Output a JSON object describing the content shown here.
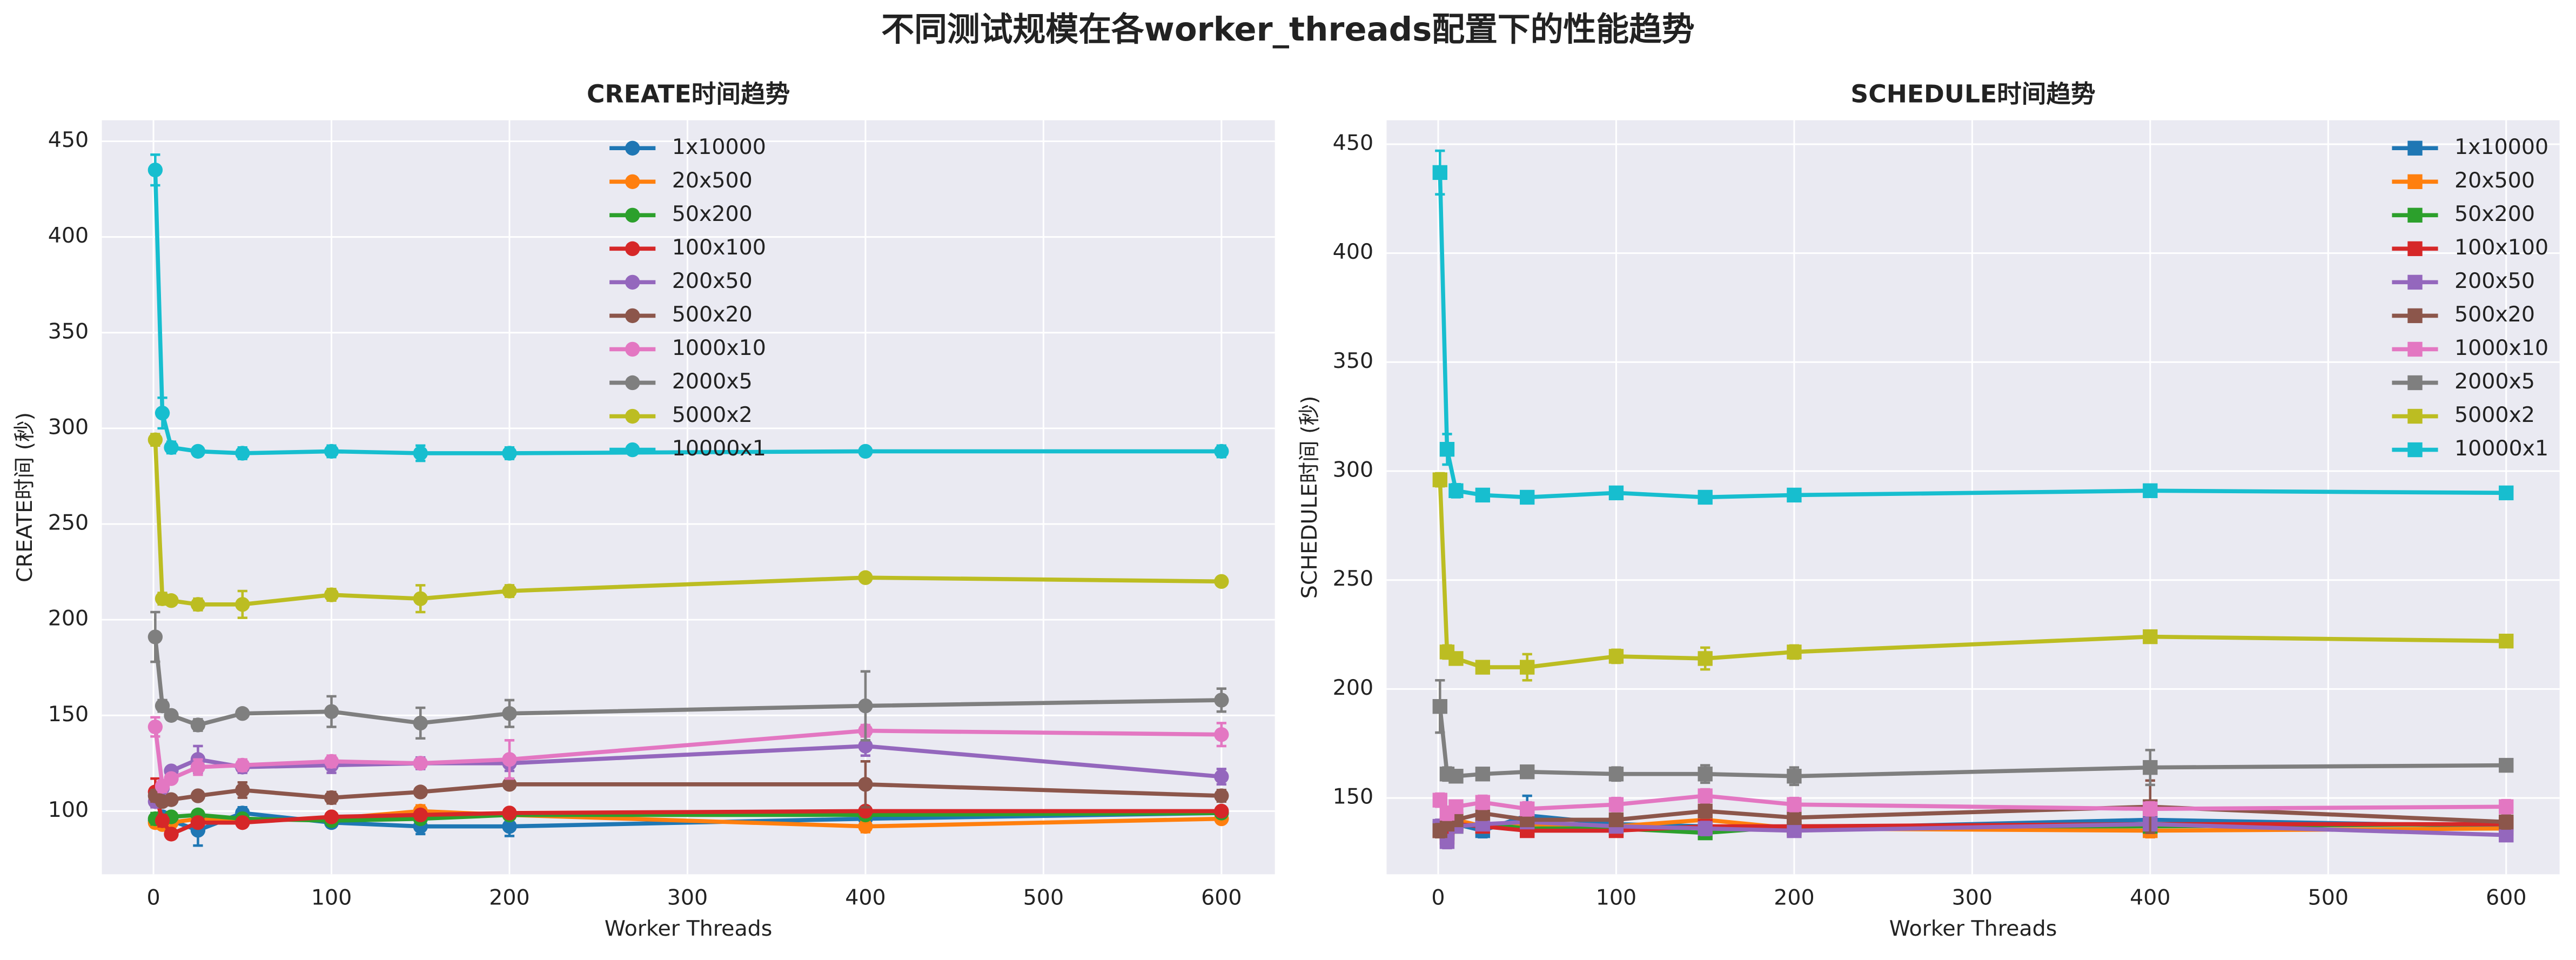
{
  "title": "不同测试规模在各worker_threads配置下的性能趋势",
  "chart_data": [
    {
      "type": "line",
      "title": "CREATE时间趋势",
      "x_label": "Worker Threads",
      "y_label": "CREATE时间 (秒)",
      "marker": "circle",
      "legend": "upper center",
      "grid": true,
      "x": [
        1,
        5,
        10,
        25,
        50,
        100,
        150,
        200,
        400,
        600
      ],
      "xlim": [
        -29,
        630
      ],
      "xticks": [
        0,
        100,
        200,
        300,
        400,
        500,
        600
      ],
      "ylim": [
        67,
        461
      ],
      "yticks": [
        100,
        150,
        200,
        250,
        300,
        350,
        400,
        450
      ],
      "series": [
        {
          "name": "1x10000",
          "color": "#1f77b4",
          "values": [
            95,
            97,
            95,
            90,
            99,
            94,
            92,
            92,
            96,
            99
          ],
          "errors": [
            3,
            2,
            2,
            8,
            3,
            2,
            4,
            5,
            3,
            2
          ]
        },
        {
          "name": "20x500",
          "color": "#ff7f0e",
          "values": [
            94,
            93,
            94,
            96,
            95,
            96,
            100,
            98,
            92,
            96
          ],
          "errors": [
            2,
            2,
            2,
            2,
            2,
            2,
            3,
            2,
            3,
            2
          ]
        },
        {
          "name": "50x200",
          "color": "#2ca02c",
          "values": [
            96,
            95,
            97,
            98,
            96,
            95,
            96,
            98,
            98,
            99
          ],
          "errors": [
            3,
            2,
            2,
            2,
            2,
            2,
            2,
            2,
            2,
            2
          ]
        },
        {
          "name": "100x100",
          "color": "#d62728",
          "values": [
            110,
            95,
            88,
            94,
            94,
            97,
            98,
            99,
            100,
            100
          ],
          "errors": [
            7,
            3,
            2,
            2,
            2,
            2,
            2,
            2,
            2,
            2
          ]
        },
        {
          "name": "200x50",
          "color": "#9467bd",
          "values": [
            105,
            112,
            121,
            127,
            123,
            124,
            125,
            125,
            134,
            118
          ],
          "errors": [
            3,
            2,
            2,
            7,
            3,
            4,
            3,
            4,
            5,
            4
          ]
        },
        {
          "name": "500x20",
          "color": "#8c564b",
          "values": [
            108,
            105,
            106,
            108,
            111,
            107,
            110,
            114,
            114,
            108
          ],
          "errors": [
            3,
            2,
            2,
            2,
            4,
            3,
            2,
            2,
            12,
            3
          ]
        },
        {
          "name": "1000x10",
          "color": "#e377c2",
          "values": [
            144,
            113,
            117,
            123,
            124,
            126,
            125,
            127,
            142,
            140
          ],
          "errors": [
            5,
            3,
            2,
            4,
            3,
            3,
            2,
            10,
            3,
            6
          ]
        },
        {
          "name": "2000x5",
          "color": "#7f7f7f",
          "values": [
            191,
            155,
            150,
            145,
            151,
            152,
            146,
            151,
            155,
            158
          ],
          "errors": [
            13,
            3,
            2,
            3,
            2,
            8,
            8,
            7,
            18,
            6
          ]
        },
        {
          "name": "5000x2",
          "color": "#bcbd22",
          "values": [
            294,
            211,
            210,
            208,
            208,
            213,
            211,
            215,
            222,
            220
          ],
          "errors": [
            3,
            3,
            2,
            3,
            7,
            3,
            7,
            3,
            2,
            2
          ]
        },
        {
          "name": "10000x1",
          "color": "#17becf",
          "values": [
            435,
            308,
            290,
            288,
            287,
            288,
            287,
            287,
            288,
            288
          ],
          "errors": [
            8,
            8,
            3,
            2,
            3,
            3,
            4,
            3,
            2,
            3
          ]
        }
      ]
    },
    {
      "type": "line",
      "title": "SCHEDULE时间趋势",
      "x_label": "Worker Threads",
      "y_label": "SCHEDULE时间 (秒)",
      "marker": "square",
      "legend": "upper right",
      "grid": true,
      "x": [
        1,
        5,
        10,
        25,
        50,
        100,
        150,
        200,
        400,
        600
      ],
      "xlim": [
        -29,
        630
      ],
      "xticks": [
        0,
        100,
        200,
        300,
        400,
        500,
        600
      ],
      "ylim": [
        115,
        461
      ],
      "yticks": [
        150,
        200,
        250,
        300,
        350,
        400,
        450
      ],
      "series": [
        {
          "name": "1x10000",
          "color": "#1f77b4",
          "values": [
            136,
            134,
            138,
            135,
            142,
            138,
            137,
            136,
            140,
            137
          ],
          "errors": [
            3,
            2,
            2,
            3,
            9,
            2,
            3,
            2,
            3,
            2
          ]
        },
        {
          "name": "20x500",
          "color": "#ff7f0e",
          "values": [
            135,
            136,
            140,
            137,
            138,
            137,
            140,
            136,
            135,
            136
          ],
          "errors": [
            2,
            2,
            2,
            2,
            2,
            2,
            3,
            2,
            3,
            2
          ]
        },
        {
          "name": "50x200",
          "color": "#2ca02c",
          "values": [
            136,
            134,
            137,
            138,
            136,
            136,
            134,
            137,
            137,
            138
          ],
          "errors": [
            2,
            2,
            2,
            2,
            2,
            2,
            2,
            2,
            2,
            2
          ]
        },
        {
          "name": "100x100",
          "color": "#d62728",
          "values": [
            135,
            132,
            138,
            137,
            135,
            135,
            137,
            137,
            138,
            138
          ],
          "errors": [
            3,
            3,
            2,
            2,
            2,
            2,
            2,
            2,
            2,
            2
          ]
        },
        {
          "name": "200x50",
          "color": "#9467bd",
          "values": [
            137,
            130,
            137,
            138,
            139,
            137,
            136,
            135,
            138,
            133
          ],
          "errors": [
            3,
            3,
            2,
            2,
            2,
            2,
            3,
            2,
            2,
            2
          ]
        },
        {
          "name": "500x20",
          "color": "#8c564b",
          "values": [
            135,
            138,
            140,
            143,
            140,
            140,
            144,
            141,
            146,
            139
          ],
          "errors": [
            3,
            2,
            2,
            3,
            2,
            2,
            3,
            2,
            12,
            3
          ]
        },
        {
          "name": "1000x10",
          "color": "#e377c2",
          "values": [
            149,
            143,
            146,
            148,
            145,
            147,
            151,
            147,
            145,
            146
          ],
          "errors": [
            3,
            3,
            2,
            3,
            3,
            3,
            3,
            3,
            3,
            3
          ]
        },
        {
          "name": "2000x5",
          "color": "#7f7f7f",
          "values": [
            192,
            161,
            160,
            161,
            162,
            161,
            161,
            160,
            164,
            165
          ],
          "errors": [
            12,
            3,
            2,
            2,
            2,
            3,
            4,
            4,
            8,
            2
          ]
        },
        {
          "name": "5000x2",
          "color": "#bcbd22",
          "values": [
            296,
            217,
            214,
            210,
            210,
            215,
            214,
            217,
            224,
            222
          ],
          "errors": [
            3,
            3,
            2,
            2,
            6,
            3,
            5,
            3,
            2,
            2
          ]
        },
        {
          "name": "10000x1",
          "color": "#17becf",
          "values": [
            437,
            310,
            291,
            289,
            288,
            290,
            288,
            289,
            291,
            290
          ],
          "errors": [
            10,
            7,
            3,
            2,
            2,
            2,
            2,
            2,
            2,
            2
          ]
        }
      ]
    }
  ]
}
